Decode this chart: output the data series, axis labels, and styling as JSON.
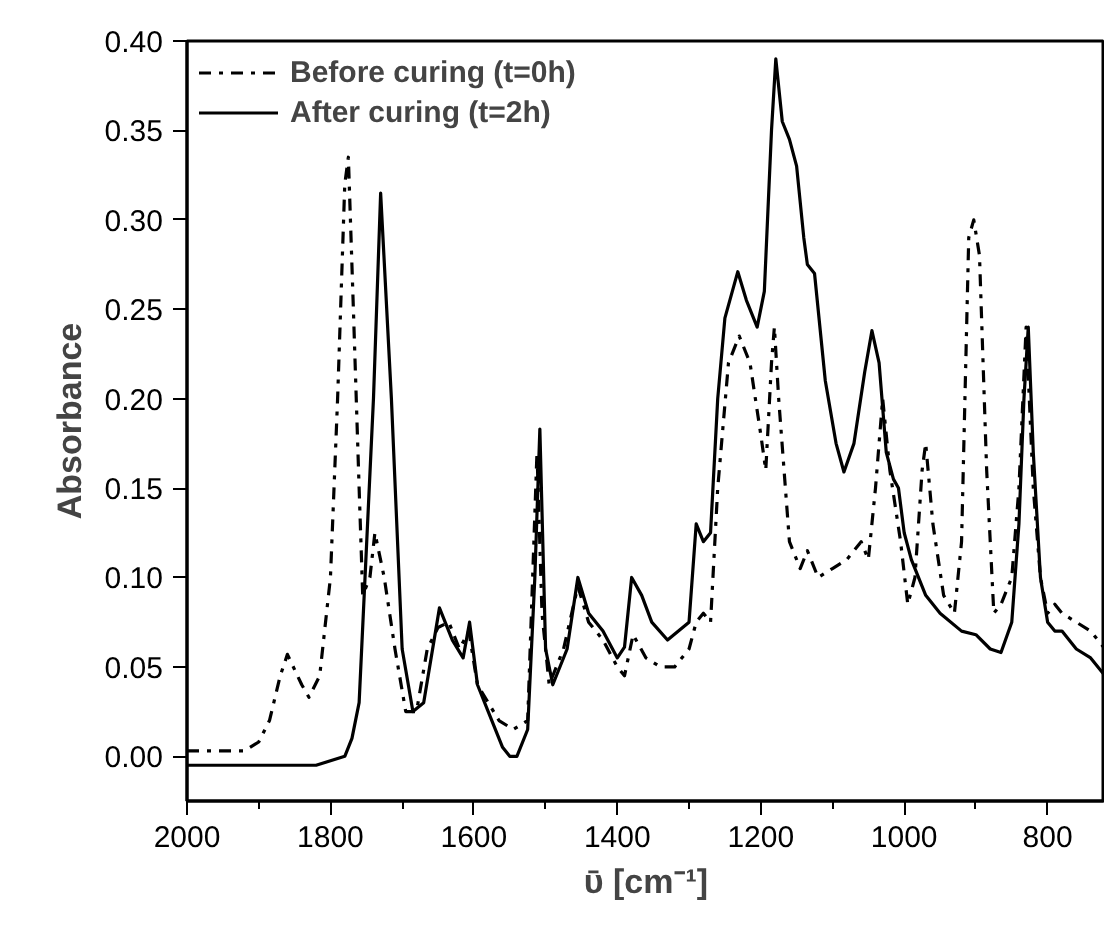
{
  "chart_data": {
    "type": "line",
    "xlabel": "ῡ [cm⁻¹]",
    "ylabel": "Absorbance",
    "xlim": [
      2000,
      720
    ],
    "ylim": [
      -0.025,
      0.4
    ],
    "xticks": [
      2000,
      {
        "value": 1900,
        "label": null
      },
      1800,
      {
        "value": 1700,
        "label": null
      },
      1600,
      {
        "value": 1500,
        "label": null
      },
      1400,
      {
        "value": 1300,
        "label": null
      },
      1200,
      {
        "value": 1100,
        "label": null
      },
      1000,
      {
        "value": 900,
        "label": null
      },
      800
    ],
    "yticks": [
      {
        "value": 0,
        "label": "0.00"
      },
      {
        "value": 0.05,
        "label": "0.05"
      },
      {
        "value": 0.1,
        "label": "0.10"
      },
      {
        "value": 0.15,
        "label": "0.15"
      },
      {
        "value": 0.2,
        "label": "0.20"
      },
      {
        "value": 0.25,
        "label": "0.25"
      },
      {
        "value": 0.3,
        "label": "0.30"
      },
      {
        "value": 0.35,
        "label": "0.35"
      },
      {
        "value": 0.4,
        "label": "0.40"
      }
    ],
    "grid": false,
    "legend": "top left",
    "marker": "none",
    "series": [
      {
        "name": "Before curing (t=0h)",
        "color": "#000000",
        "line_style": "dashdot",
        "x": [
          2000,
          1920,
          1900,
          1885,
          1870,
          1860,
          1840,
          1830,
          1815,
          1800,
          1790,
          1780,
          1775,
          1768,
          1760,
          1755,
          1745,
          1738,
          1725,
          1710,
          1695,
          1680,
          1665,
          1650,
          1635,
          1620,
          1607,
          1595,
          1580,
          1565,
          1545,
          1525,
          1512,
          1505,
          1495,
          1475,
          1455,
          1440,
          1420,
          1400,
          1390,
          1378,
          1360,
          1340,
          1320,
          1300,
          1290,
          1280,
          1270,
          1260,
          1245,
          1230,
          1215,
          1200,
          1193,
          1185,
          1181,
          1175,
          1160,
          1145,
          1135,
          1120,
          1100,
          1080,
          1060,
          1050,
          1040,
          1030,
          1020,
          1005,
          995,
          985,
          975,
          970,
          960,
          945,
          930,
          920,
          910,
          903,
          895,
          885,
          875,
          865,
          850,
          840,
          830,
          820,
          810,
          800,
          790,
          780,
          760,
          740,
          720
        ],
        "values": [
          0.003,
          0.003,
          0.008,
          0.02,
          0.045,
          0.057,
          0.04,
          0.033,
          0.045,
          0.1,
          0.2,
          0.32,
          0.335,
          0.25,
          0.15,
          0.09,
          0.1,
          0.125,
          0.1,
          0.06,
          0.025,
          0.025,
          0.06,
          0.072,
          0.075,
          0.06,
          0.07,
          0.04,
          0.03,
          0.02,
          0.015,
          0.02,
          0.17,
          0.08,
          0.04,
          0.06,
          0.095,
          0.075,
          0.065,
          0.05,
          0.045,
          0.068,
          0.055,
          0.05,
          0.05,
          0.06,
          0.075,
          0.08,
          0.075,
          0.15,
          0.22,
          0.235,
          0.22,
          0.18,
          0.16,
          0.22,
          0.24,
          0.2,
          0.12,
          0.105,
          0.115,
          0.1,
          0.105,
          0.11,
          0.12,
          0.11,
          0.15,
          0.2,
          0.16,
          0.12,
          0.085,
          0.1,
          0.16,
          0.175,
          0.13,
          0.09,
          0.08,
          0.12,
          0.29,
          0.3,
          0.28,
          0.16,
          0.08,
          0.085,
          0.1,
          0.15,
          0.24,
          0.15,
          0.1,
          0.08,
          0.085,
          0.08,
          0.075,
          0.07,
          0.06
        ]
      },
      {
        "name": "After curing (t=2h)",
        "color": "#000000",
        "line_style": "solid",
        "x": [
          2000,
          1820,
          1780,
          1770,
          1760,
          1740,
          1730,
          1715,
          1700,
          1685,
          1670,
          1648,
          1630,
          1615,
          1606,
          1595,
          1580,
          1560,
          1550,
          1540,
          1525,
          1515,
          1508,
          1500,
          1490,
          1470,
          1455,
          1440,
          1420,
          1400,
          1390,
          1380,
          1366,
          1352,
          1330,
          1300,
          1290,
          1280,
          1270,
          1260,
          1250,
          1232,
          1220,
          1205,
          1195,
          1185,
          1179,
          1170,
          1160,
          1150,
          1140,
          1135,
          1125,
          1110,
          1095,
          1084,
          1070,
          1055,
          1045,
          1035,
          1025,
          1015,
          1008,
          1000,
          990,
          970,
          950,
          920,
          900,
          880,
          865,
          850,
          840,
          833,
          827,
          820,
          810,
          800,
          790,
          780,
          760,
          740,
          720
        ],
        "values": [
          -0.005,
          -0.005,
          0.0,
          0.01,
          0.03,
          0.2,
          0.315,
          0.2,
          0.06,
          0.025,
          0.03,
          0.083,
          0.065,
          0.055,
          0.075,
          0.04,
          0.025,
          0.005,
          0.0,
          0.0,
          0.015,
          0.1,
          0.183,
          0.06,
          0.04,
          0.06,
          0.1,
          0.08,
          0.07,
          0.055,
          0.061,
          0.1,
          0.09,
          0.075,
          0.065,
          0.075,
          0.13,
          0.12,
          0.125,
          0.2,
          0.245,
          0.271,
          0.255,
          0.24,
          0.26,
          0.35,
          0.39,
          0.355,
          0.345,
          0.33,
          0.29,
          0.275,
          0.27,
          0.21,
          0.175,
          0.159,
          0.175,
          0.215,
          0.238,
          0.22,
          0.17,
          0.155,
          0.15,
          0.125,
          0.11,
          0.09,
          0.08,
          0.07,
          0.068,
          0.06,
          0.058,
          0.075,
          0.13,
          0.2,
          0.24,
          0.17,
          0.1,
          0.075,
          0.07,
          0.07,
          0.06,
          0.055,
          0.045
        ]
      }
    ]
  }
}
